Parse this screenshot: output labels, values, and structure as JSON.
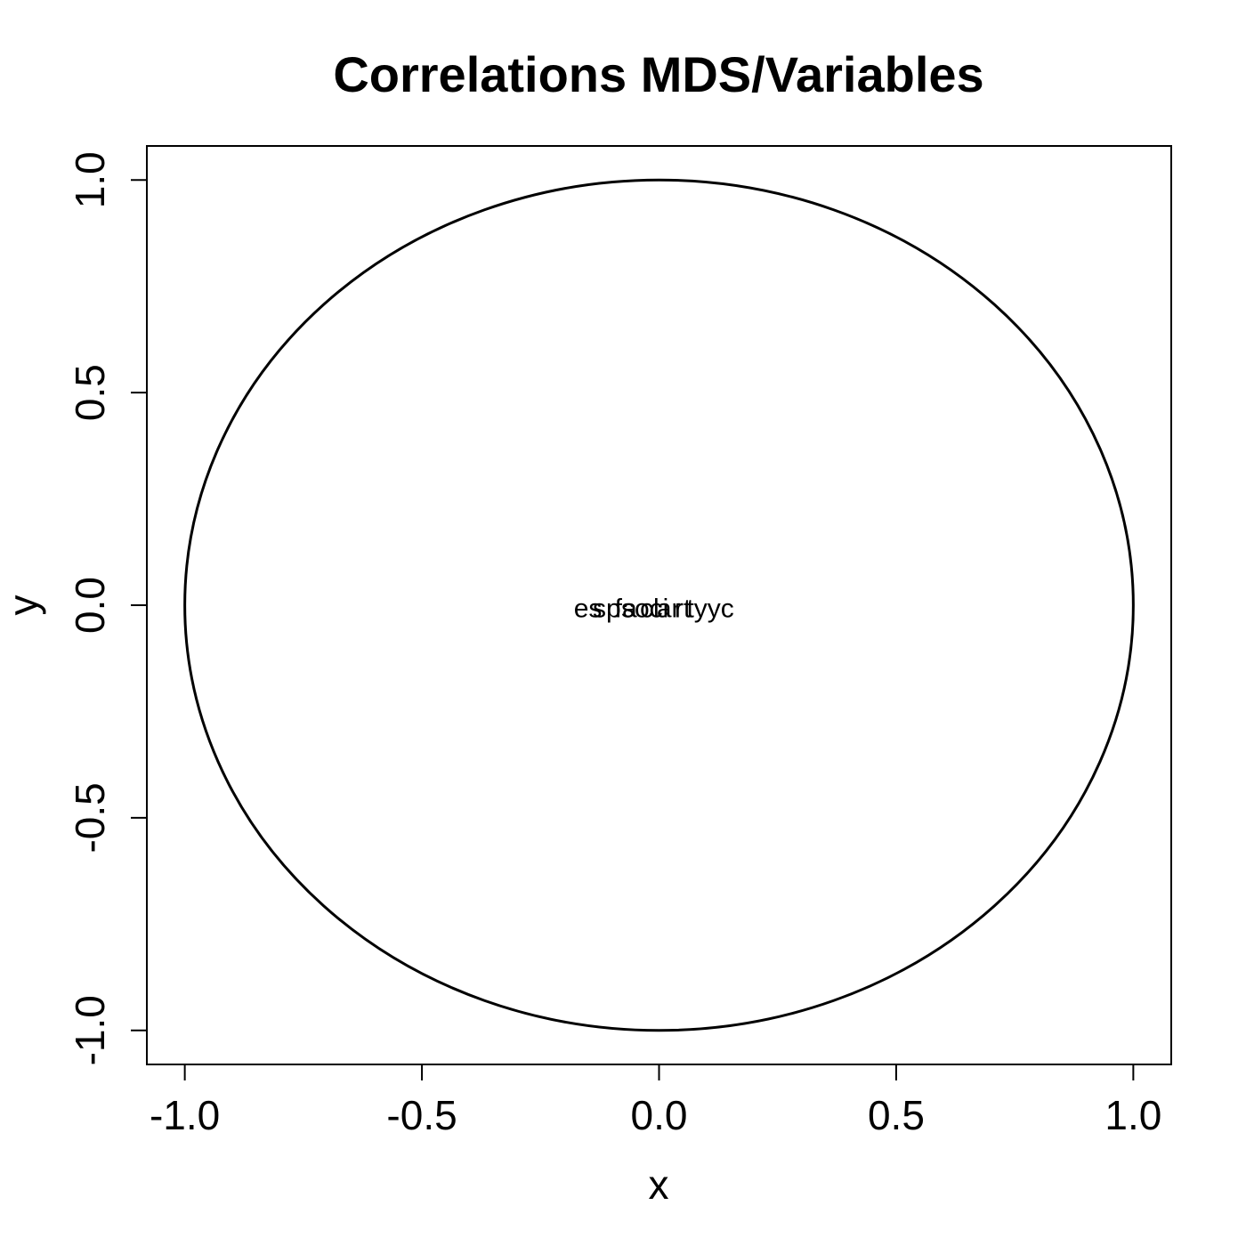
{
  "chart_data": {
    "type": "scatter",
    "title": "Correlations MDS/Variables",
    "xlabel": "x",
    "ylabel": "y",
    "xlim": [
      -1.08,
      1.08
    ],
    "ylim": [
      -1.08,
      1.08
    ],
    "xticks": [
      "-1.0",
      "-0.5",
      "0.0",
      "0.5",
      "1.0"
    ],
    "yticks": [
      "-1.0",
      "-0.5",
      "0.0",
      "0.5",
      "1.0"
    ],
    "circle": {
      "center": [
        0,
        0
      ],
      "radius": 1.0
    },
    "grid": false,
    "points": [
      {
        "label": "es",
        "x": -0.15,
        "y": -0.005
      },
      {
        "label": "sp",
        "x": -0.11,
        "y": -0.005
      },
      {
        "label": "fa",
        "x": -0.07,
        "y": -0.005
      },
      {
        "label": "so",
        "x": -0.05,
        "y": -0.005
      },
      {
        "label": "cl",
        "x": -0.02,
        "y": -0.005
      },
      {
        "label": "ci",
        "x": 0.0,
        "y": -0.005
      },
      {
        "label": "ar",
        "x": 0.02,
        "y": -0.005
      },
      {
        "label": "rt",
        "x": 0.05,
        "y": -0.005
      },
      {
        "label": "ty",
        "x": 0.08,
        "y": -0.005
      },
      {
        "label": "yc",
        "x": 0.13,
        "y": -0.005
      }
    ]
  }
}
